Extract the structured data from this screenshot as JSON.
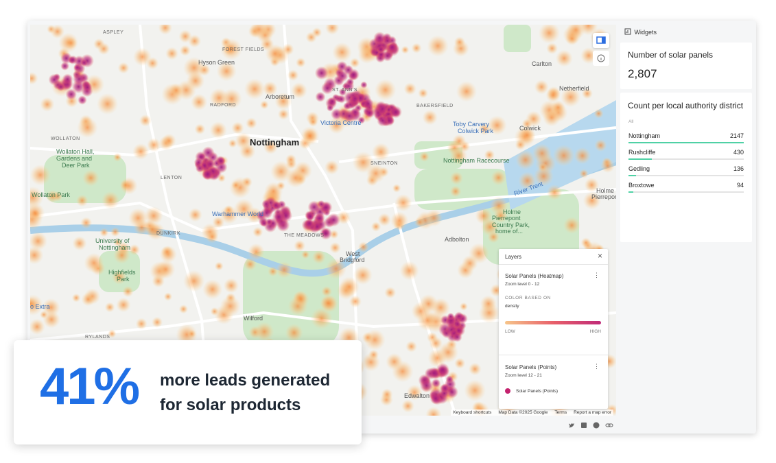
{
  "map_labels": [
    "ASPLEY",
    "FOREST FIELDS",
    "Hyson Green",
    "RADFORD",
    "Arboretum",
    "Nottingham",
    "Victoria Centre",
    "ST. ANN'S",
    "BAKERSFIELD",
    "Carlton",
    "Netherfield",
    "Colwick",
    "Toby Carvery",
    "Colwick Park",
    "SNEINTON",
    "Nottingham Racecourse",
    "WOLLATON",
    "Wollaton Hall,",
    "Gardens and",
    "Deer Park",
    "LENTON",
    "Wollaton Park",
    "DUNKIRK",
    "University of",
    "Nottingham",
    "Highfields",
    "Park",
    "Warhammer World",
    "THE MEADOWS",
    "West",
    "Bridgford",
    "Adbolton",
    "Holme",
    "Pierrepont",
    "Country Park,",
    "home of...",
    "Wilford",
    "Edwalton",
    "Holme",
    "Pierrepon",
    "River Trent",
    "RYLANDS",
    "o Extra"
  ],
  "map_footer": [
    "Keyboard shortcuts",
    "Map Data ©2025 Google",
    "Terms",
    "Report a map error"
  ],
  "widgets": {
    "header": "Widgets",
    "formula": {
      "title": "Number of solar panels",
      "value": "2,807"
    },
    "category": {
      "title": "Count per local authority district",
      "filter": "All",
      "rows": [
        {
          "name": "Nottingham",
          "value": 2147
        },
        {
          "name": "Rushcliffe",
          "value": 430
        },
        {
          "name": "Gedling",
          "value": 136
        },
        {
          "name": "Broxtowe",
          "value": 94
        }
      ]
    }
  },
  "layers": {
    "title": "Layers",
    "items": [
      {
        "name": "Solar Panels (Heatmap)",
        "zoom": "Zoom level 0 - 12",
        "color_label": "COLOR BASED ON",
        "color_field": "density",
        "low": "LOW",
        "high": "HIGH"
      },
      {
        "name": "Solar Panels (Points)",
        "zoom": "Zoom level 12 - 21",
        "legend": "Solar Panels (Points)"
      }
    ]
  },
  "callout": {
    "stat": "41%",
    "lines": [
      "more leads generated",
      "for solar products"
    ]
  }
}
